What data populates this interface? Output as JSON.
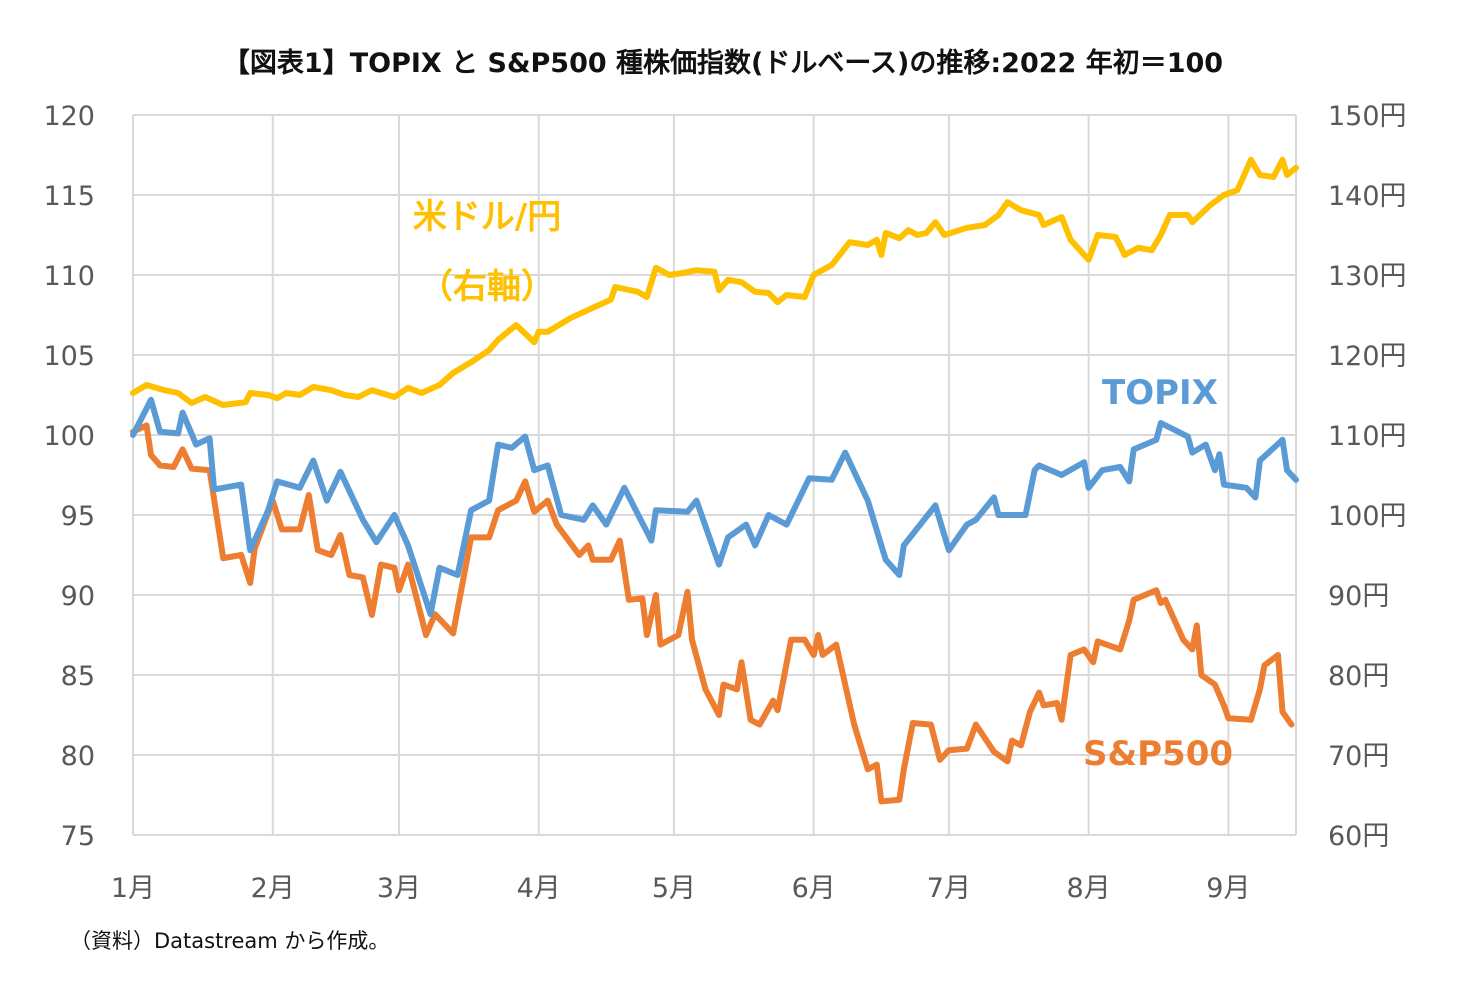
{
  "chart_data": {
    "type": "line",
    "title": "【図表1】TOPIX と S&P500 種株価指数(ドルベース)の推移:2022 年初＝100",
    "source_note": "（資料）Datastream から作成。",
    "xlim": [
      "2022-01-01",
      "2022-09-16"
    ],
    "x_ticks": [
      {
        "date": "2022-01-01",
        "label": "1月"
      },
      {
        "date": "2022-02-01",
        "label": "2月"
      },
      {
        "date": "2022-03-01",
        "label": "3月"
      },
      {
        "date": "2022-04-01",
        "label": "4月"
      },
      {
        "date": "2022-05-01",
        "label": "5月"
      },
      {
        "date": "2022-06-01",
        "label": "6月"
      },
      {
        "date": "2022-07-01",
        "label": "7月"
      },
      {
        "date": "2022-08-01",
        "label": "8月"
      },
      {
        "date": "2022-09-01",
        "label": "9月"
      }
    ],
    "y_left": {
      "ylim": [
        75,
        120
      ],
      "ticks": [
        "75",
        "80",
        "85",
        "90",
        "95",
        "100",
        "105",
        "110",
        "115",
        "120"
      ]
    },
    "y_right": {
      "ylim": [
        60,
        150
      ],
      "ticks": [
        "60円",
        "70円",
        "80円",
        "90円",
        "100円",
        "110円",
        "120円",
        "130円",
        "140円",
        "150円"
      ]
    },
    "grid": true,
    "series": [
      {
        "name": "TOPIX",
        "axis": "left",
        "color": "#5B9BD5",
        "points": [
          [
            "01-01",
            100
          ],
          [
            "01-05",
            102.2
          ],
          [
            "01-07",
            100.2
          ],
          [
            "01-11",
            100.1
          ],
          [
            "01-12",
            101.4
          ],
          [
            "01-15",
            99.4
          ],
          [
            "01-18",
            99.8
          ],
          [
            "01-19",
            96.6
          ],
          [
            "01-25",
            96.9
          ],
          [
            "01-27",
            92.8
          ],
          [
            "01-31",
            95.3
          ],
          [
            "02-02",
            97.1
          ],
          [
            "02-07",
            96.7
          ],
          [
            "02-10",
            98.4
          ],
          [
            "02-13",
            95.9
          ],
          [
            "02-16",
            97.7
          ],
          [
            "02-21",
            94.7
          ],
          [
            "02-24",
            93.3
          ],
          [
            "02-28",
            95.0
          ],
          [
            "03-03",
            93.1
          ],
          [
            "03-08",
            88.8
          ],
          [
            "03-10",
            91.7
          ],
          [
            "03-14",
            91.25
          ],
          [
            "03-17",
            95.3
          ],
          [
            "03-21",
            95.9
          ],
          [
            "03-23",
            99.4
          ],
          [
            "03-26",
            99.2
          ],
          [
            "03-29",
            99.9
          ],
          [
            "03-31",
            97.8
          ],
          [
            "04-03",
            98.1
          ],
          [
            "04-06",
            95.0
          ],
          [
            "04-11",
            94.7
          ],
          [
            "04-13",
            95.6
          ],
          [
            "04-16",
            94.4
          ],
          [
            "04-20",
            96.7
          ],
          [
            "04-26",
            93.4
          ],
          [
            "04-27",
            95.3
          ],
          [
            "05-04",
            95.2
          ],
          [
            "05-06",
            95.9
          ],
          [
            "05-11",
            91.9
          ],
          [
            "05-13",
            93.6
          ],
          [
            "05-17",
            94.4
          ],
          [
            "05-19",
            93.1
          ],
          [
            "05-22",
            95.0
          ],
          [
            "05-26",
            94.4
          ],
          [
            "05-31",
            97.3
          ],
          [
            "06-05",
            97.2
          ],
          [
            "06-08",
            98.9
          ],
          [
            "06-13",
            95.9
          ],
          [
            "06-16",
            93.1
          ],
          [
            "06-17",
            92.2
          ],
          [
            "06-20",
            91.25
          ],
          [
            "06-21",
            93.1
          ],
          [
            "06-28",
            95.6
          ],
          [
            "07-01",
            92.8
          ],
          [
            "07-05",
            94.4
          ],
          [
            "07-07",
            94.7
          ],
          [
            "07-11",
            96.1
          ],
          [
            "07-12",
            95.0
          ],
          [
            "07-18",
            95.0
          ],
          [
            "07-20",
            97.8
          ],
          [
            "07-21",
            98.1
          ],
          [
            "07-26",
            97.5
          ],
          [
            "07-31",
            98.3
          ],
          [
            "08-01",
            96.7
          ],
          [
            "08-04",
            97.8
          ],
          [
            "08-08",
            98.0
          ],
          [
            "08-10",
            97.1
          ],
          [
            "08-11",
            99.1
          ],
          [
            "08-16",
            99.7
          ],
          [
            "08-17",
            100.75
          ],
          [
            "08-23",
            99.9
          ],
          [
            "08-24",
            98.9
          ],
          [
            "08-27",
            99.4
          ],
          [
            "08-29",
            97.8
          ],
          [
            "08-30",
            98.8
          ],
          [
            "08-31",
            96.9
          ],
          [
            "09-05",
            96.7
          ],
          [
            "09-07",
            96.1
          ],
          [
            "09-08",
            98.4
          ],
          [
            "09-13",
            99.7
          ],
          [
            "09-14",
            97.8
          ],
          [
            "09-16",
            97.2
          ]
        ]
      },
      {
        "name": "S&P500",
        "axis": "left",
        "color": "#ED7D31",
        "points": [
          [
            "01-01",
            100.2
          ],
          [
            "01-04",
            100.6
          ],
          [
            "01-05",
            98.75
          ],
          [
            "01-07",
            98.1
          ],
          [
            "01-10",
            98.0
          ],
          [
            "01-12",
            99.1
          ],
          [
            "01-14",
            97.9
          ],
          [
            "01-18",
            97.8
          ],
          [
            "01-21",
            92.3
          ],
          [
            "01-25",
            92.5
          ],
          [
            "01-27",
            90.75
          ],
          [
            "01-28",
            92.9
          ],
          [
            "02-01",
            95.9
          ],
          [
            "02-03",
            94.1
          ],
          [
            "02-07",
            94.1
          ],
          [
            "02-09",
            96.25
          ],
          [
            "02-11",
            92.8
          ],
          [
            "02-14",
            92.5
          ],
          [
            "02-16",
            93.75
          ],
          [
            "02-18",
            91.25
          ],
          [
            "02-21",
            91.1
          ],
          [
            "02-23",
            88.75
          ],
          [
            "02-25",
            91.9
          ],
          [
            "02-28",
            91.7
          ],
          [
            "03-01",
            90.3
          ],
          [
            "03-03",
            91.9
          ],
          [
            "03-07",
            87.5
          ],
          [
            "03-09",
            88.8
          ],
          [
            "03-13",
            87.6
          ],
          [
            "03-17",
            93.6
          ],
          [
            "03-21",
            93.6
          ],
          [
            "03-23",
            95.3
          ],
          [
            "03-27",
            95.9
          ],
          [
            "03-29",
            97.1
          ],
          [
            "03-31",
            95.2
          ],
          [
            "04-03",
            95.9
          ],
          [
            "04-05",
            94.4
          ],
          [
            "04-10",
            92.5
          ],
          [
            "04-12",
            93.1
          ],
          [
            "04-13",
            92.2
          ],
          [
            "04-17",
            92.2
          ],
          [
            "04-19",
            93.4
          ],
          [
            "04-21",
            89.7
          ],
          [
            "04-24",
            89.8
          ],
          [
            "04-25",
            87.5
          ],
          [
            "04-27",
            90.0
          ],
          [
            "04-28",
            86.9
          ],
          [
            "05-02",
            87.5
          ],
          [
            "05-04",
            90.2
          ],
          [
            "05-05",
            87.2
          ],
          [
            "05-08",
            84.1
          ],
          [
            "05-11",
            82.5
          ],
          [
            "05-12",
            84.4
          ],
          [
            "05-15",
            84.1
          ],
          [
            "05-16",
            85.8
          ],
          [
            "05-18",
            82.2
          ],
          [
            "05-20",
            81.9
          ],
          [
            "05-23",
            83.4
          ],
          [
            "05-24",
            82.8
          ],
          [
            "05-27",
            87.2
          ],
          [
            "05-30",
            87.2
          ],
          [
            "06-01",
            86.25
          ],
          [
            "06-02",
            87.5
          ],
          [
            "06-03",
            86.25
          ],
          [
            "06-06",
            86.9
          ],
          [
            "06-10",
            81.9
          ],
          [
            "06-13",
            79.1
          ],
          [
            "06-15",
            79.4
          ],
          [
            "06-16",
            77.1
          ],
          [
            "06-20",
            77.2
          ],
          [
            "06-21",
            79.1
          ],
          [
            "06-23",
            82.0
          ],
          [
            "06-27",
            81.9
          ],
          [
            "06-29",
            79.7
          ],
          [
            "07-01",
            80.3
          ],
          [
            "07-05",
            80.4
          ],
          [
            "07-07",
            81.9
          ],
          [
            "07-11",
            80.2
          ],
          [
            "07-14",
            79.6
          ],
          [
            "07-15",
            80.9
          ],
          [
            "07-17",
            80.6
          ],
          [
            "07-19",
            82.7
          ],
          [
            "07-21",
            83.9
          ],
          [
            "07-22",
            83.1
          ],
          [
            "07-25",
            83.25
          ],
          [
            "07-26",
            82.2
          ],
          [
            "07-28",
            86.25
          ],
          [
            "07-31",
            86.6
          ],
          [
            "08-02",
            85.8
          ],
          [
            "08-03",
            87.1
          ],
          [
            "08-08",
            86.6
          ],
          [
            "08-10",
            88.4
          ],
          [
            "08-11",
            89.7
          ],
          [
            "08-16",
            90.3
          ],
          [
            "08-17",
            89.5
          ],
          [
            "08-18",
            89.7
          ],
          [
            "08-22",
            87.2
          ],
          [
            "08-24",
            86.6
          ],
          [
            "08-25",
            88.1
          ],
          [
            "08-26",
            85.0
          ],
          [
            "08-29",
            84.4
          ],
          [
            "08-31",
            83.1
          ],
          [
            "09-01",
            82.3
          ],
          [
            "09-06",
            82.2
          ],
          [
            "09-08",
            84.1
          ],
          [
            "09-09",
            85.6
          ],
          [
            "09-12",
            86.25
          ],
          [
            "09-13",
            82.7
          ],
          [
            "09-15",
            81.9
          ]
        ]
      },
      {
        "name": "米ドル/円",
        "name_sub": "（右軸）",
        "axis": "right",
        "color": "#FFC000",
        "points": [
          [
            "01-01",
            115.25
          ],
          [
            "01-04",
            116.25
          ],
          [
            "01-08",
            115.6
          ],
          [
            "01-11",
            115.25
          ],
          [
            "01-14",
            114.0
          ],
          [
            "01-17",
            114.75
          ],
          [
            "01-21",
            113.75
          ],
          [
            "01-26",
            114.1
          ],
          [
            "01-27",
            115.25
          ],
          [
            "01-31",
            115.0
          ],
          [
            "02-02",
            114.6
          ],
          [
            "02-04",
            115.25
          ],
          [
            "02-07",
            115.0
          ],
          [
            "02-10",
            116.0
          ],
          [
            "02-14",
            115.6
          ],
          [
            "02-17",
            115.0
          ],
          [
            "02-20",
            114.75
          ],
          [
            "02-23",
            115.6
          ],
          [
            "02-28",
            114.75
          ],
          [
            "03-03",
            115.9
          ],
          [
            "03-06",
            115.25
          ],
          [
            "03-10",
            116.25
          ],
          [
            "03-13",
            117.75
          ],
          [
            "03-17",
            119.1
          ],
          [
            "03-21",
            120.6
          ],
          [
            "03-23",
            121.9
          ],
          [
            "03-27",
            123.75
          ],
          [
            "03-31",
            121.6
          ],
          [
            "04-01",
            122.9
          ],
          [
            "04-03",
            122.9
          ],
          [
            "04-08",
            124.6
          ],
          [
            "04-13",
            125.9
          ],
          [
            "04-17",
            126.9
          ],
          [
            "04-18",
            128.5
          ],
          [
            "04-23",
            127.9
          ],
          [
            "04-25",
            127.25
          ],
          [
            "04-27",
            130.9
          ],
          [
            "04-30",
            130.0
          ],
          [
            "05-03",
            130.25
          ],
          [
            "05-06",
            130.6
          ],
          [
            "05-10",
            130.4
          ],
          [
            "05-11",
            128.1
          ],
          [
            "05-13",
            129.4
          ],
          [
            "05-16",
            129.1
          ],
          [
            "05-19",
            127.9
          ],
          [
            "05-22",
            127.75
          ],
          [
            "05-24",
            126.6
          ],
          [
            "05-26",
            127.5
          ],
          [
            "05-30",
            127.25
          ],
          [
            "06-01",
            130.0
          ],
          [
            "06-05",
            131.25
          ],
          [
            "06-09",
            134.1
          ],
          [
            "06-13",
            133.75
          ],
          [
            "06-15",
            134.4
          ],
          [
            "06-16",
            132.5
          ],
          [
            "06-17",
            135.25
          ],
          [
            "06-20",
            134.6
          ],
          [
            "06-22",
            135.6
          ],
          [
            "06-24",
            135.0
          ],
          [
            "06-26",
            135.25
          ],
          [
            "06-28",
            136.6
          ],
          [
            "06-30",
            135.0
          ],
          [
            "07-05",
            135.9
          ],
          [
            "07-09",
            136.25
          ],
          [
            "07-12",
            137.5
          ],
          [
            "07-14",
            139.1
          ],
          [
            "07-17",
            138.1
          ],
          [
            "07-21",
            137.5
          ],
          [
            "07-22",
            136.25
          ],
          [
            "07-26",
            137.25
          ],
          [
            "07-28",
            134.4
          ],
          [
            "08-01",
            131.9
          ],
          [
            "08-03",
            135.0
          ],
          [
            "08-07",
            134.75
          ],
          [
            "08-09",
            132.5
          ],
          [
            "08-12",
            133.4
          ],
          [
            "08-15",
            133.1
          ],
          [
            "08-17",
            135.0
          ],
          [
            "08-19",
            137.5
          ],
          [
            "08-23",
            137.5
          ],
          [
            "08-24",
            136.6
          ],
          [
            "08-28",
            138.75
          ],
          [
            "08-31",
            140.0
          ],
          [
            "09-03",
            140.6
          ],
          [
            "09-06",
            144.4
          ],
          [
            "09-08",
            142.5
          ],
          [
            "09-11",
            142.25
          ],
          [
            "09-13",
            144.4
          ],
          [
            "09-14",
            142.5
          ],
          [
            "09-16",
            143.4
          ]
        ]
      }
    ]
  }
}
